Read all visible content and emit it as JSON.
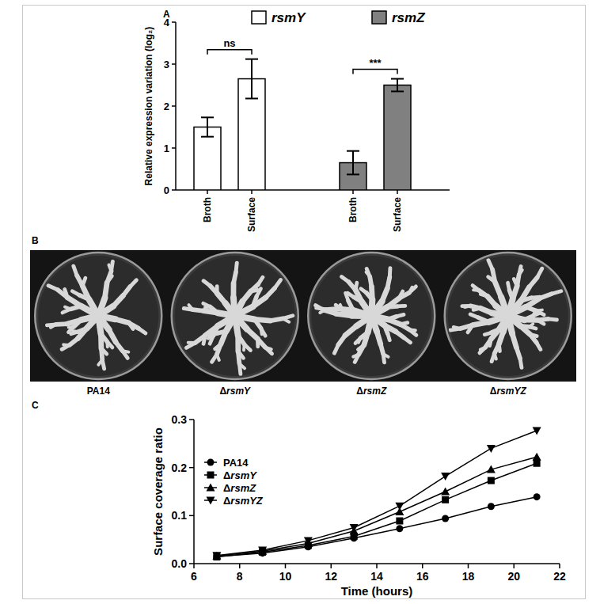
{
  "chart_data": [
    {
      "type": "bar",
      "title": "A",
      "y_label": "Relative expression variation (log₂)",
      "categories": [
        "Broth",
        "Surface",
        "Broth",
        "Surface"
      ],
      "series": [
        {
          "name": "rsmY",
          "color": "#ffffff",
          "values": [
            1.5,
            2.65,
            null,
            null
          ],
          "errors": [
            0.23,
            0.47,
            null,
            null
          ]
        },
        {
          "name": "rsmZ",
          "color": "#808080",
          "values": [
            null,
            null,
            0.65,
            2.5
          ],
          "errors": [
            null,
            null,
            0.28,
            0.15
          ]
        }
      ],
      "ylim": [
        0,
        4
      ],
      "yticks": [
        0,
        1,
        2,
        3,
        4
      ],
      "annotations": [
        "ns",
        "***"
      ],
      "legend": "top",
      "grid": false
    },
    {
      "type": "image",
      "title": "B",
      "labels": [
        "PA14",
        "ΔrsmY",
        "ΔrsmZ",
        "ΔrsmYZ"
      ]
    },
    {
      "type": "line",
      "title": "C",
      "x_label": "Time (hours)",
      "y_label": "Surface coverage ratio",
      "x": [
        7,
        9,
        11,
        13,
        15,
        17,
        19,
        21
      ],
      "series": [
        {
          "name": "PA14",
          "color": "#000000",
          "marker": "circle",
          "line_style": "solid",
          "values": [
            0.015,
            0.022,
            0.035,
            0.053,
            0.073,
            0.094,
            0.119,
            0.139
          ]
        },
        {
          "name": "ΔrsmY",
          "color": "#000000",
          "marker": "square",
          "line_style": "solid",
          "values": [
            0.014,
            0.024,
            0.038,
            0.057,
            0.089,
            0.133,
            0.173,
            0.209
          ]
        },
        {
          "name": "ΔrsmZ",
          "color": "#000000",
          "marker": "triangle-up",
          "line_style": "solid",
          "values": [
            0.016,
            0.026,
            0.042,
            0.068,
            0.108,
            0.15,
            0.196,
            0.222
          ]
        },
        {
          "name": "ΔrsmYZ",
          "color": "#000000",
          "marker": "triangle-down",
          "line_style": "solid",
          "values": [
            0.017,
            0.028,
            0.048,
            0.075,
            0.12,
            0.182,
            0.24,
            0.277
          ]
        }
      ],
      "xlim": [
        6,
        22
      ],
      "xticks": [
        6,
        8,
        10,
        12,
        14,
        16,
        18,
        20,
        22
      ],
      "ylim": [
        0,
        0.3
      ],
      "yticks": [
        {
          "value": 0,
          "label": "0.0"
        },
        0.1,
        0.2,
        0.3
      ],
      "legend": "upper left",
      "grid": false
    }
  ]
}
